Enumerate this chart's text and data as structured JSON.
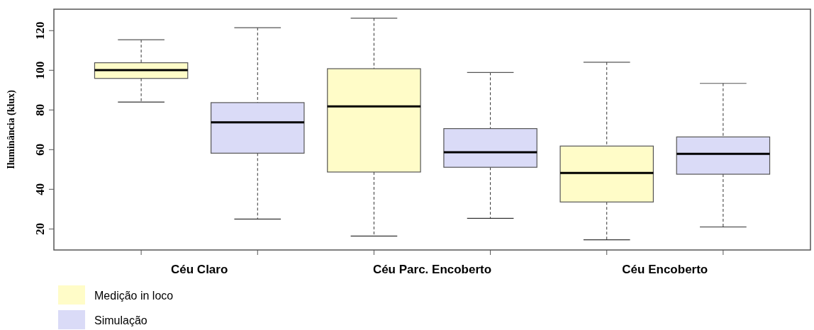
{
  "chart_data": {
    "type": "box",
    "ylabel": "Iluminância (klux)",
    "categories": [
      "Céu Claro",
      "Céu Parc. Encoberto",
      "Céu Encoberto"
    ],
    "series": [
      {
        "name": "Medição in loco",
        "color": "#fffcc8",
        "boxes": [
          {
            "low": 84.0,
            "q1": 95.9,
            "median": 100.1,
            "q3": 103.8,
            "high": 115.4
          },
          {
            "low": 16.4,
            "q1": 48.7,
            "median": 81.8,
            "q3": 100.8,
            "high": 126.3
          },
          {
            "low": 14.5,
            "q1": 33.6,
            "median": 48.2,
            "q3": 61.8,
            "high": 104.1
          }
        ]
      },
      {
        "name": "Simulação",
        "color": "#dadbf7",
        "boxes": [
          {
            "low": 25.0,
            "q1": 58.2,
            "median": 73.8,
            "q3": 83.7,
            "high": 121.5
          },
          {
            "low": 25.3,
            "q1": 51.1,
            "median": 58.7,
            "q3": 70.6,
            "high": 98.9
          },
          {
            "low": 21.0,
            "q1": 47.6,
            "median": 57.9,
            "q3": 66.4,
            "high": 93.4
          }
        ]
      }
    ],
    "ylim": [
      9.4,
      130.8
    ],
    "yticks": [
      20,
      40,
      60,
      80,
      100,
      120
    ],
    "legend": "bottom left",
    "grid": false
  }
}
